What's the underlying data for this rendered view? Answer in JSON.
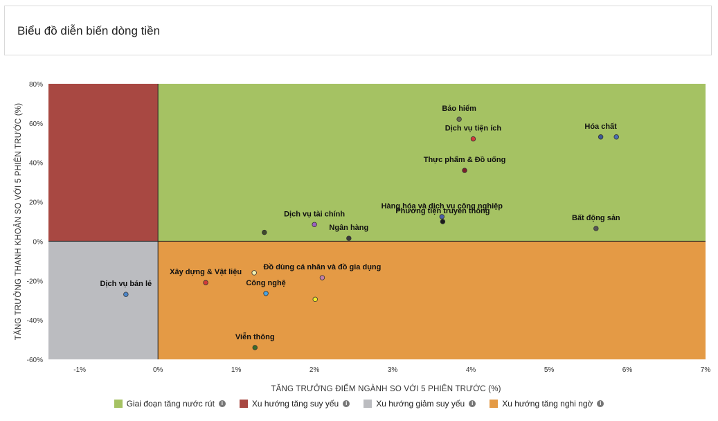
{
  "header": {
    "title": "Biểu đồ diễn biến dòng tiền"
  },
  "chart_data": {
    "type": "scatter",
    "title": "",
    "xlabel": "TĂNG TRƯỞNG ĐIỂM NGÀNH SO VỚI 5 PHIÊN TRƯỚC (%)",
    "ylabel": "TĂNG TRƯỞNG THANH KHOẢN SO VỚI 5 PHIÊN TRƯỚC (%)",
    "xlim": [
      -1.4,
      7
    ],
    "ylim": [
      -60,
      80
    ],
    "x_ticks": [
      -1,
      0,
      1,
      2,
      3,
      4,
      5,
      6,
      7
    ],
    "x_tick_labels": [
      "-1%",
      "0%",
      "1%",
      "2%",
      "3%",
      "4%",
      "5%",
      "6%",
      "7%"
    ],
    "y_ticks": [
      80,
      60,
      40,
      20,
      0,
      -20,
      -40,
      -60
    ],
    "y_tick_labels": [
      "80%",
      "60%",
      "40%",
      "20%",
      "0%",
      "-20%",
      "-40%",
      "-60%"
    ],
    "quadrants": [
      {
        "name": "Giai đoạn tăng nước rút",
        "color": "#a5c263"
      },
      {
        "name": "Xu hướng tăng suy yếu",
        "color": "#a84842"
      },
      {
        "name": "Xu hướng giảm suy yếu",
        "color": "#bbbcc0"
      },
      {
        "name": "Xu hướng tăng nghi ngờ",
        "color": "#e49a45"
      }
    ],
    "points": [
      {
        "label": "Bảo hiểm",
        "x": 3.85,
        "y": 62,
        "color": "#6b6b55"
      },
      {
        "label": "Hóa chất",
        "x": 5.66,
        "y": 53,
        "color": "#3e5a96"
      },
      {
        "label": "",
        "x": 5.86,
        "y": 53,
        "color": "#4a6fb5"
      },
      {
        "label": "Dịch vụ tiện ích",
        "x": 4.03,
        "y": 52,
        "color": "#d23a3a"
      },
      {
        "label": "Thực phẩm & Đồ uống",
        "x": 3.92,
        "y": 36,
        "color": "#7a1f2a"
      },
      {
        "label": "Hàng hóa và dịch vụ công nghiệp",
        "x": 3.63,
        "y": 12.5,
        "color": "#4a5ea8"
      },
      {
        "label": "Phương tiện truyền thông",
        "x": 3.64,
        "y": 10,
        "color": "#1a1a1a"
      },
      {
        "label": "Bất động sản",
        "x": 5.6,
        "y": 6.5,
        "color": "#555555"
      },
      {
        "label": "Dịch vụ tài chính",
        "x": 2.0,
        "y": 8.5,
        "color": "#9b5fc0"
      },
      {
        "label": "",
        "x": 1.36,
        "y": 4.5,
        "color": "#3e4a2a"
      },
      {
        "label": "Ngân hàng",
        "x": 2.44,
        "y": 1.5,
        "color": "#3a3a3a"
      },
      {
        "label": "Xây dựng & Vật liệu",
        "x": 0.61,
        "y": -21,
        "color": "#d13a3a"
      },
      {
        "label": "Đồ dùng cá nhân và đồ gia dụng",
        "x": 2.1,
        "y": -18.5,
        "color": "#c47fa6"
      },
      {
        "label": "",
        "x": 1.23,
        "y": -16,
        "color": "#f4f1b0"
      },
      {
        "label": "Công nghệ",
        "x": 1.38,
        "y": -26.5,
        "color": "#4aa3e0"
      },
      {
        "label": "",
        "x": 2.01,
        "y": -29.5,
        "color": "#f2ec2a"
      },
      {
        "label": "Dịch vụ bán lẻ",
        "x": -0.41,
        "y": -27,
        "color": "#4c86c9"
      },
      {
        "label": "Viễn thông",
        "x": 1.24,
        "y": -54,
        "color": "#3a6b2a"
      }
    ]
  },
  "legend": {
    "items": [
      {
        "label": "Giai đoạn tăng nước rút",
        "color": "#a5c263",
        "icon": "info-icon"
      },
      {
        "label": "Xu hướng tăng suy yếu",
        "color": "#a84842",
        "icon": "info-icon"
      },
      {
        "label": "Xu hướng giảm suy yếu",
        "color": "#bbbcc0",
        "icon": "info-icon"
      },
      {
        "label": "Xu hướng tăng nghi ngờ",
        "color": "#e49a45",
        "icon": "info-icon"
      }
    ],
    "info_glyph": "i"
  }
}
